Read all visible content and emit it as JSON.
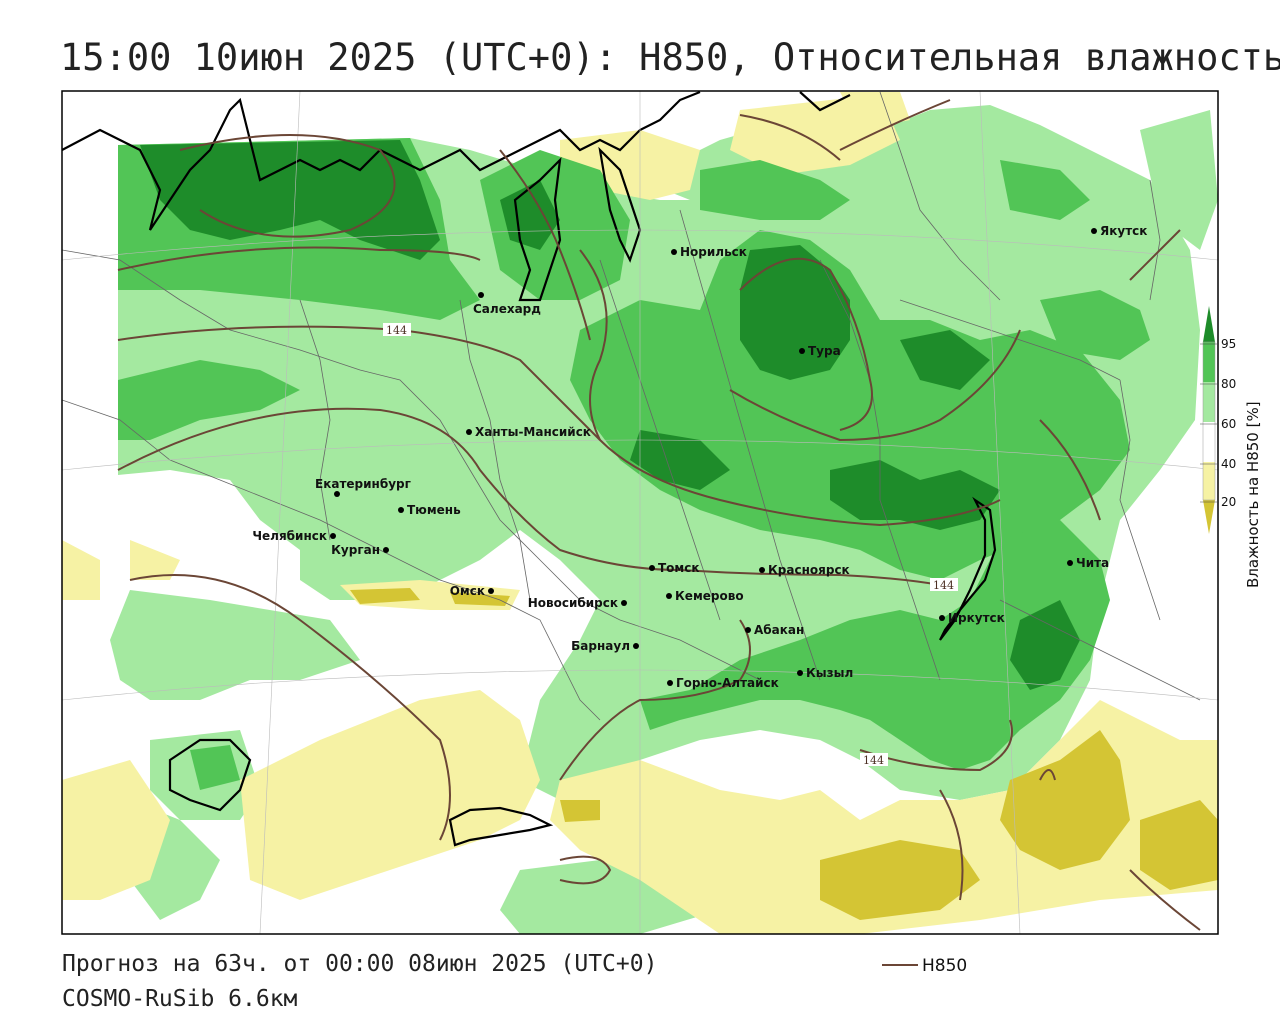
{
  "header": {
    "title": "15:00 10июн 2025 (UTC+0): H850, Относительная влажность"
  },
  "footer": {
    "forecast": "Прогноз на 63ч. от 00:00 08июн 2025 (UTC+0)",
    "model": "COSMO-RuSib 6.6км",
    "legend_line_label": "H850"
  },
  "colorbar": {
    "title": "Влажность на H850 [%]",
    "ticks": [
      "95",
      "80",
      "60",
      "40",
      "20"
    ],
    "colors": {
      "c95": "#1e8c2a",
      "c80": "#52c556",
      "c60": "#a4e9a0",
      "c40": "#ffffff",
      "c20": "#f6f2a4",
      "c0": "#d4c534"
    }
  },
  "isolines": {
    "label": "144",
    "color": "#6b4636"
  },
  "cities": [
    {
      "name": "Якутск"
    },
    {
      "name": "Норильск"
    },
    {
      "name": "Салехард"
    },
    {
      "name": "Тура"
    },
    {
      "name": "Ханты-Мансийск"
    },
    {
      "name": "Екатеринбург"
    },
    {
      "name": "Тюмень"
    },
    {
      "name": "Челябинск"
    },
    {
      "name": "Курган"
    },
    {
      "name": "Омск"
    },
    {
      "name": "Новосибирск"
    },
    {
      "name": "Томск"
    },
    {
      "name": "Кемерово"
    },
    {
      "name": "Красноярск"
    },
    {
      "name": "Барнаул"
    },
    {
      "name": "Абакан"
    },
    {
      "name": "Горно-Алтайск"
    },
    {
      "name": "Кызыл"
    },
    {
      "name": "Иркутск"
    },
    {
      "name": "Чита"
    }
  ]
}
